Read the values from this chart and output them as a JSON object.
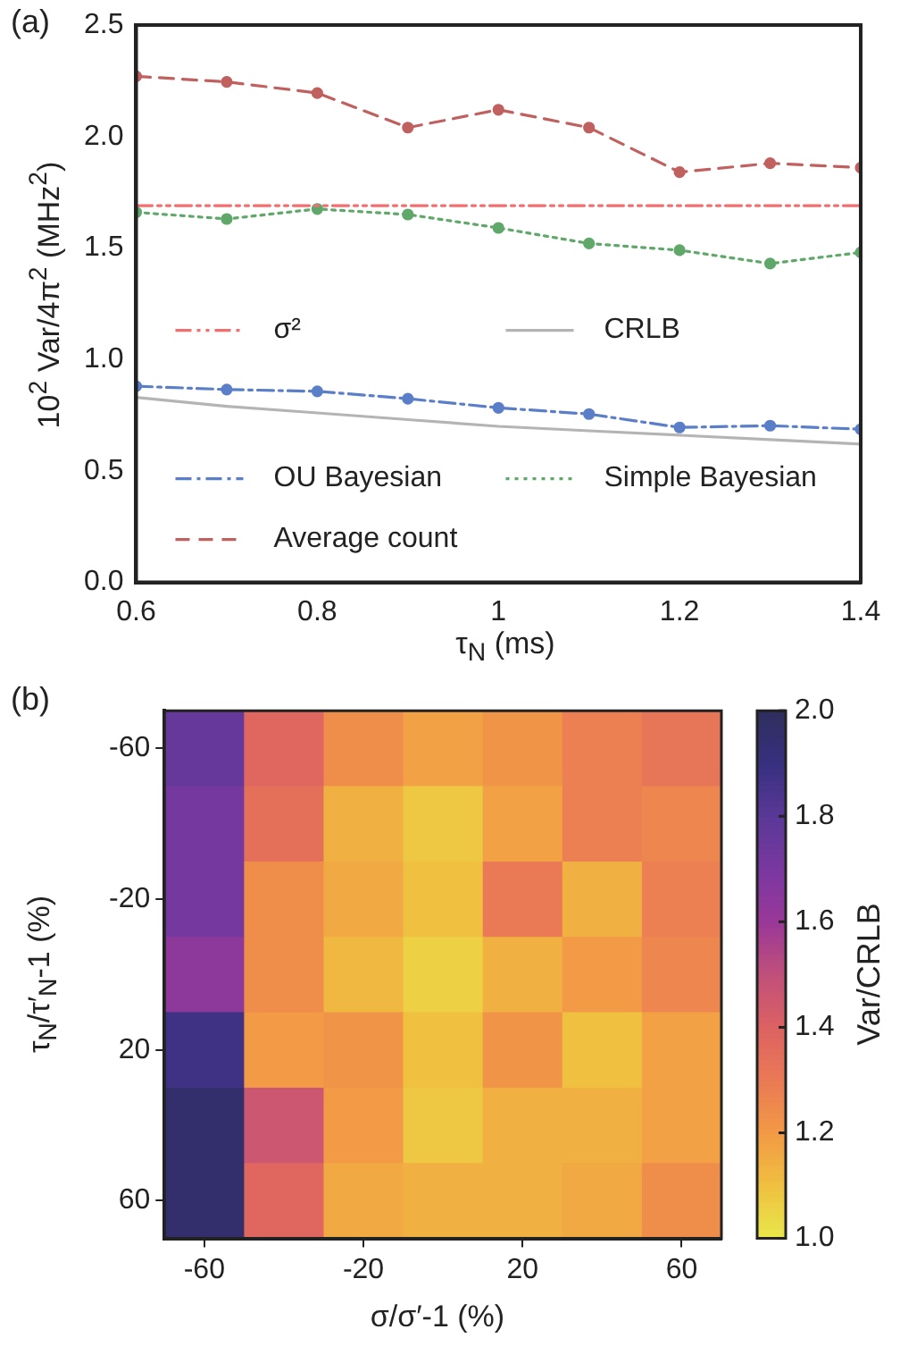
{
  "chart_data": [
    {
      "type": "line",
      "title": "(a)",
      "xlabel": "τ$_{N}$ (ms)",
      "ylabel": "10$^{2}$ Var/4π$^{2}$ (MHz$^{2}$)",
      "x": [
        0.6,
        0.7,
        0.8,
        0.9,
        1.0,
        1.1,
        1.2,
        1.3,
        1.4
      ],
      "xlim": [
        0.6,
        1.4
      ],
      "xticks": [
        0.6,
        0.8,
        1,
        1.2,
        1.4
      ],
      "ylim": [
        0,
        2.5
      ],
      "yticks": [
        {
          "value": 0,
          "label": "0.0"
        },
        0.5,
        {
          "value": 1,
          "label": "1.0"
        },
        1.5,
        {
          "value": 2,
          "label": "2.0"
        },
        2.5
      ],
      "grid": false,
      "legend": "bottom",
      "series": [
        {
          "name": "σ²",
          "color": "#f07070",
          "line_style": "dashdotdot",
          "marker": "none",
          "values": [
            1.69,
            1.69,
            1.69,
            1.69,
            1.69,
            1.69,
            1.69,
            1.69,
            1.69
          ]
        },
        {
          "name": "CRLB",
          "color": "#b4b4b4",
          "line_style": "solid",
          "marker": "none",
          "values": [
            0.83,
            0.79,
            0.76,
            0.73,
            0.7,
            0.68,
            0.66,
            0.64,
            0.62
          ]
        },
        {
          "name": "OU Bayesian",
          "color": "#5a7fc8",
          "line_style": "dashdot",
          "marker": "circle",
          "values": [
            0.88,
            0.865,
            0.857,
            0.824,
            0.783,
            0.755,
            0.695,
            0.703,
            0.687
          ]
        },
        {
          "name": "Simple Bayesian",
          "color": "#5fa86a",
          "line_style": "dotted",
          "marker": "circle",
          "values": [
            1.66,
            1.63,
            1.675,
            1.65,
            1.59,
            1.52,
            1.49,
            1.43,
            1.48
          ]
        },
        {
          "name": "Average count",
          "color": "#c0605f",
          "line_style": "dashed",
          "marker": "circle",
          "values": [
            2.27,
            2.245,
            2.195,
            2.04,
            2.12,
            2.04,
            1.84,
            1.88,
            1.86
          ]
        }
      ]
    },
    {
      "type": "heatmap",
      "title": "(b)",
      "xlabel": "σ/σ′-1 (%)",
      "ylabel": "τ$_{N}$/τ′$_{N}$-1 (%)",
      "clabel": "Var/CRLB",
      "categories": [
        "-60",
        null,
        "-20",
        null,
        "20",
        null,
        "60"
      ],
      "y_categories": [
        "-60",
        null,
        "-20",
        null,
        "20",
        null,
        "60"
      ],
      "clim": [
        1.0,
        2.0
      ],
      "cticks": [
        {
          "value": 1,
          "label": "1.0"
        },
        1.2,
        1.4,
        1.6,
        1.8,
        {
          "value": 2,
          "label": "2.0"
        }
      ],
      "cells": [
        [
          1.76,
          1.38,
          1.24,
          1.18,
          1.22,
          1.28,
          1.32
        ],
        [
          1.72,
          1.34,
          1.14,
          1.08,
          1.18,
          1.28,
          1.26
        ],
        [
          1.72,
          1.24,
          1.16,
          1.1,
          1.3,
          1.14,
          1.28
        ],
        [
          1.64,
          1.24,
          1.12,
          1.06,
          1.14,
          1.2,
          1.26
        ],
        [
          1.88,
          1.2,
          1.22,
          1.1,
          1.22,
          1.1,
          1.18
        ],
        [
          1.96,
          1.46,
          1.2,
          1.08,
          1.14,
          1.14,
          1.18
        ],
        [
          1.96,
          1.38,
          1.16,
          1.14,
          1.14,
          1.16,
          1.24
        ]
      ]
    }
  ]
}
